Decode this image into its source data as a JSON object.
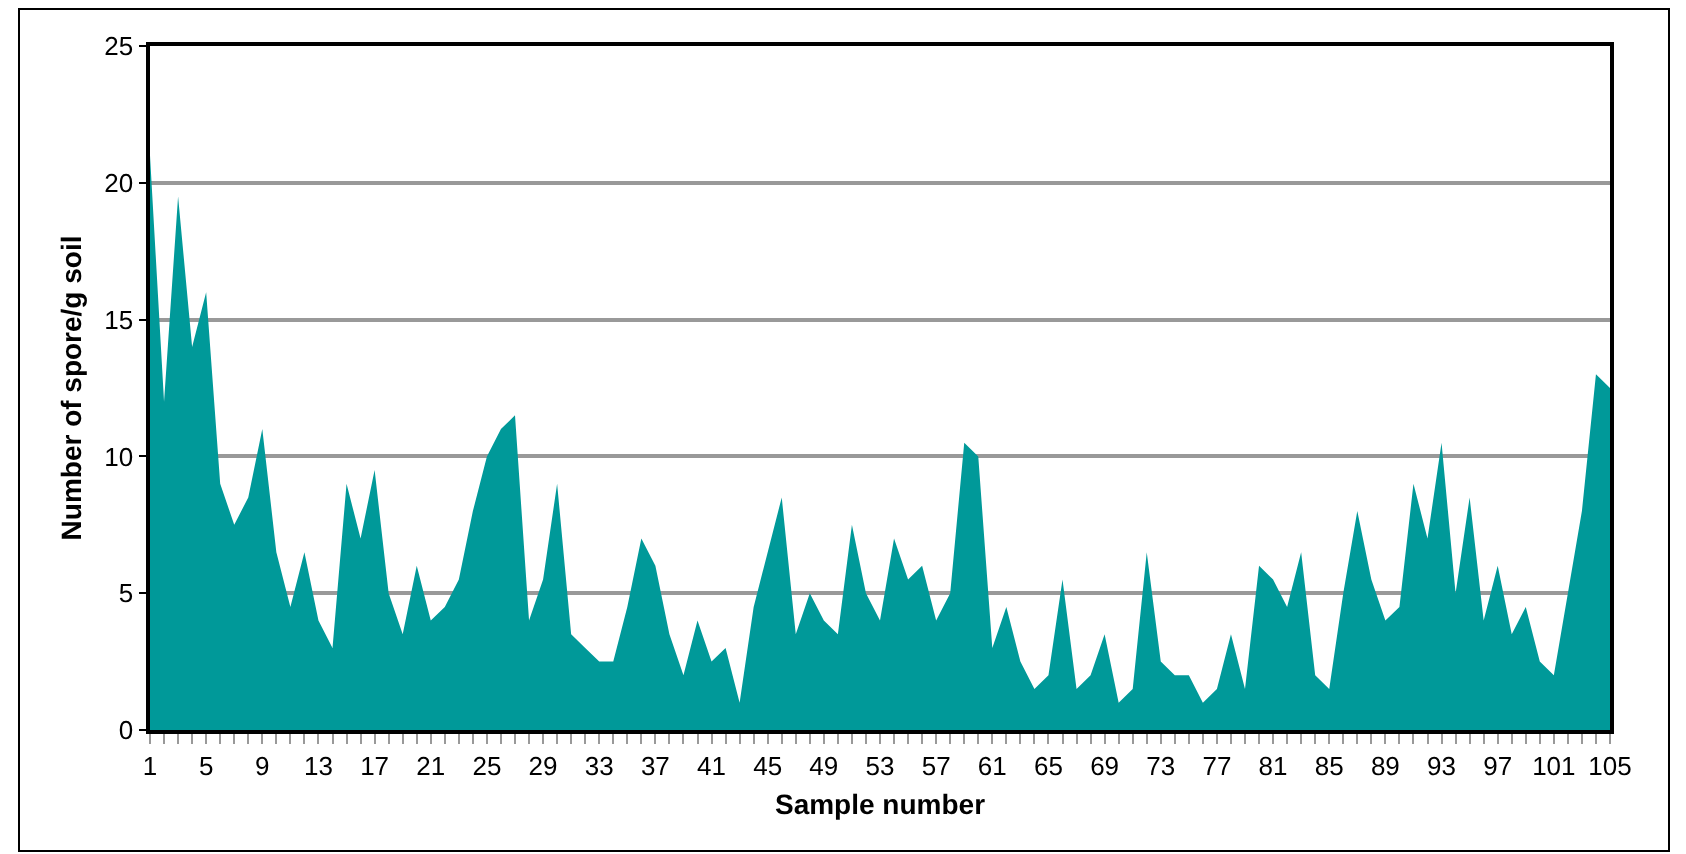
{
  "chart_data": {
    "type": "area",
    "xlabel": "Sample number",
    "ylabel": "Number of spore/g soil",
    "x": [
      1,
      2,
      3,
      4,
      5,
      6,
      7,
      8,
      9,
      10,
      11,
      12,
      13,
      14,
      15,
      16,
      17,
      18,
      19,
      20,
      21,
      22,
      23,
      24,
      25,
      26,
      27,
      28,
      29,
      30,
      31,
      32,
      33,
      34,
      35,
      36,
      37,
      38,
      39,
      40,
      41,
      42,
      43,
      44,
      45,
      46,
      47,
      48,
      49,
      50,
      51,
      52,
      53,
      54,
      55,
      56,
      57,
      58,
      59,
      60,
      61,
      62,
      63,
      64,
      65,
      66,
      67,
      68,
      69,
      70,
      71,
      72,
      73,
      74,
      75,
      76,
      77,
      78,
      79,
      80,
      81,
      82,
      83,
      84,
      85,
      86,
      87,
      88,
      89,
      90,
      91,
      92,
      93,
      94,
      95,
      96,
      97,
      98,
      99,
      100,
      101,
      102,
      103,
      104,
      105
    ],
    "series": [
      {
        "color": "#009999",
        "values": [
          21,
          12,
          19.5,
          14,
          16,
          9,
          7.5,
          8.5,
          11,
          6.5,
          4.5,
          6.5,
          4,
          3,
          9,
          7,
          9.5,
          5,
          3.5,
          6,
          4,
          4.5,
          5.5,
          8,
          10,
          11,
          11.5,
          4,
          5.5,
          9,
          3.5,
          3,
          2.5,
          2.5,
          4.5,
          7,
          6,
          3.5,
          2,
          4,
          2.5,
          3,
          1,
          4.5,
          6.5,
          8.5,
          3.5,
          5,
          4,
          3.5,
          7.5,
          5,
          4,
          7,
          5.5,
          6,
          4,
          5,
          10.5,
          10,
          3,
          4.5,
          2.5,
          1.5,
          2,
          5.5,
          1.5,
          2,
          3.5,
          1,
          1.5,
          6.5,
          2.5,
          2,
          2,
          1,
          1.5,
          3.5,
          1.5,
          6,
          5.5,
          4.5,
          6.5,
          2,
          1.5,
          5,
          8,
          5.5,
          4,
          4.5,
          9,
          7,
          10.5,
          5,
          8.5,
          4,
          6,
          3.5,
          4.5,
          2.5,
          2,
          5,
          8,
          13,
          12.5
        ]
      }
    ],
    "xlim": [
      1,
      105
    ],
    "xticks": [
      1,
      5,
      9,
      13,
      17,
      21,
      25,
      29,
      33,
      37,
      41,
      45,
      49,
      53,
      57,
      61,
      65,
      69,
      73,
      77,
      81,
      85,
      89,
      93,
      97,
      101,
      105
    ],
    "ylim": [
      0,
      25
    ],
    "yticks": [
      0,
      5,
      10,
      15,
      20,
      25
    ],
    "grid": "y"
  }
}
